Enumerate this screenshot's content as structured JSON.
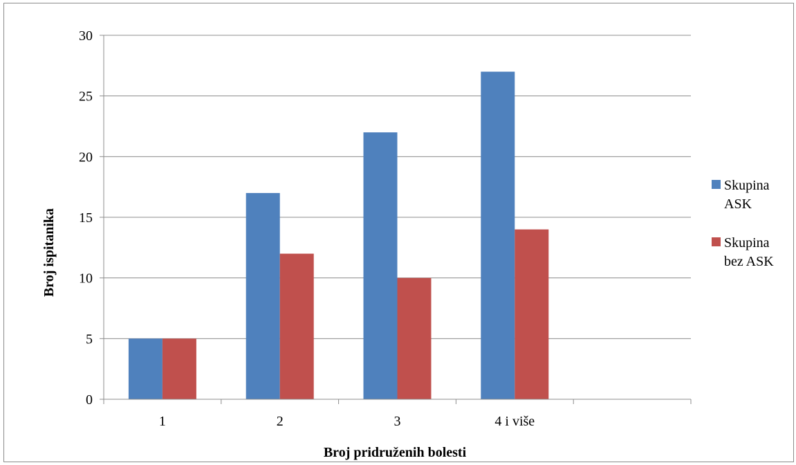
{
  "chart_data": {
    "type": "bar",
    "categories": [
      "1",
      "2",
      "3",
      "4 i više",
      ""
    ],
    "series": [
      {
        "name": "Skupina ASK",
        "legend_lines": [
          "Skupina",
          "ASK"
        ],
        "color": "#4f81bd",
        "values": [
          5,
          17,
          22,
          27,
          null
        ]
      },
      {
        "name": "Skupina bez ASK",
        "legend_lines": [
          "Skupina",
          "bez ASK"
        ],
        "color": "#c0504d",
        "values": [
          5,
          12,
          10,
          14,
          null
        ]
      }
    ],
    "xlabel": "Broj pridruženih bolesti",
    "ylabel": "Broj ispitanika",
    "ylim": [
      0,
      30
    ],
    "yticks": [
      0,
      5,
      10,
      15,
      20,
      25,
      30
    ],
    "grid": true,
    "legend_position": "right"
  }
}
